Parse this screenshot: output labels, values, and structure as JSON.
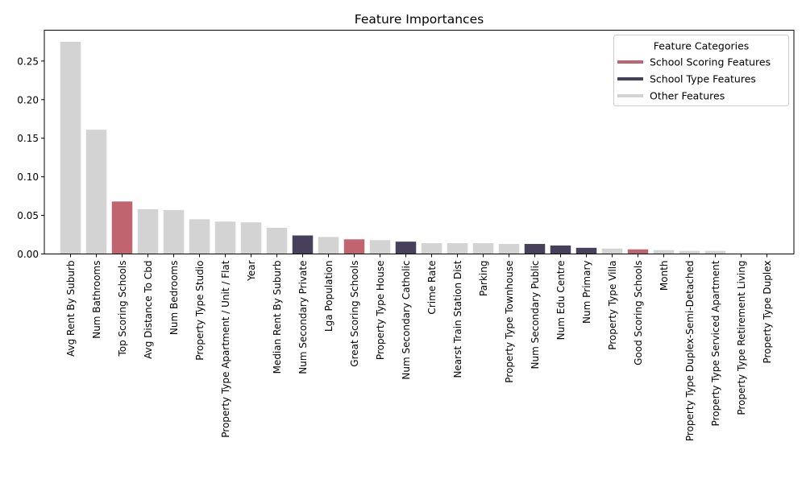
{
  "chart_data": {
    "type": "bar",
    "title": "Feature Importances",
    "xlabel": "",
    "ylabel": "",
    "ylim": [
      0,
      0.29
    ],
    "yticks": [
      0.0,
      0.05,
      0.1,
      0.15,
      0.2,
      0.25
    ],
    "ytick_labels": [
      "0.00",
      "0.05",
      "0.10",
      "0.15",
      "0.20",
      "0.25"
    ],
    "grid": false,
    "categories": [
      "Avg Rent By Suburb",
      "Num Bathrooms",
      "Top Scoring Schools",
      "Avg Distance To Cbd",
      "Num Bedrooms",
      "Property Type Studio",
      "Property Type Apartment / Unit / Flat",
      "Year",
      "Median Rent By Suburb",
      "Num Secondary Private",
      "Lga Population",
      "Great Scoring Schools",
      "Property Type House",
      "Num Secondary Catholic",
      "Crime Rate",
      "Nearst Train Station Dist",
      "Parking",
      "Property Type Townhouse",
      "Num Secondary Public",
      "Num Edu Centre",
      "Num Primary",
      "Property Type Villa",
      "Good Scoring Schools",
      "Month",
      "Property Type Duplex-Semi-Detached",
      "Property Type Serviced Apartment",
      "Property Type Retirement Living",
      "Property Type Duplex"
    ],
    "values": [
      0.275,
      0.161,
      0.068,
      0.058,
      0.057,
      0.045,
      0.042,
      0.041,
      0.034,
      0.024,
      0.022,
      0.019,
      0.018,
      0.016,
      0.014,
      0.014,
      0.014,
      0.013,
      0.013,
      0.011,
      0.008,
      0.007,
      0.006,
      0.005,
      0.004,
      0.004,
      0.0,
      0.0
    ],
    "bar_groups": [
      "other",
      "other",
      "school_scoring",
      "other",
      "other",
      "other",
      "other",
      "other",
      "other",
      "school_type",
      "other",
      "school_scoring",
      "other",
      "school_type",
      "other",
      "other",
      "other",
      "other",
      "school_type",
      "school_type",
      "school_type",
      "other",
      "school_scoring",
      "other",
      "other",
      "other",
      "other",
      "other"
    ],
    "legend": {
      "title": "Feature Categories",
      "placement": "top-right",
      "entries": [
        {
          "group": "school_scoring",
          "label": "School Scoring Features",
          "color": "#c0646f"
        },
        {
          "group": "school_type",
          "label": "School Type Features",
          "color": "#46405a"
        },
        {
          "group": "other",
          "label": "Other Features",
          "color": "#d3d3d3"
        }
      ]
    }
  }
}
